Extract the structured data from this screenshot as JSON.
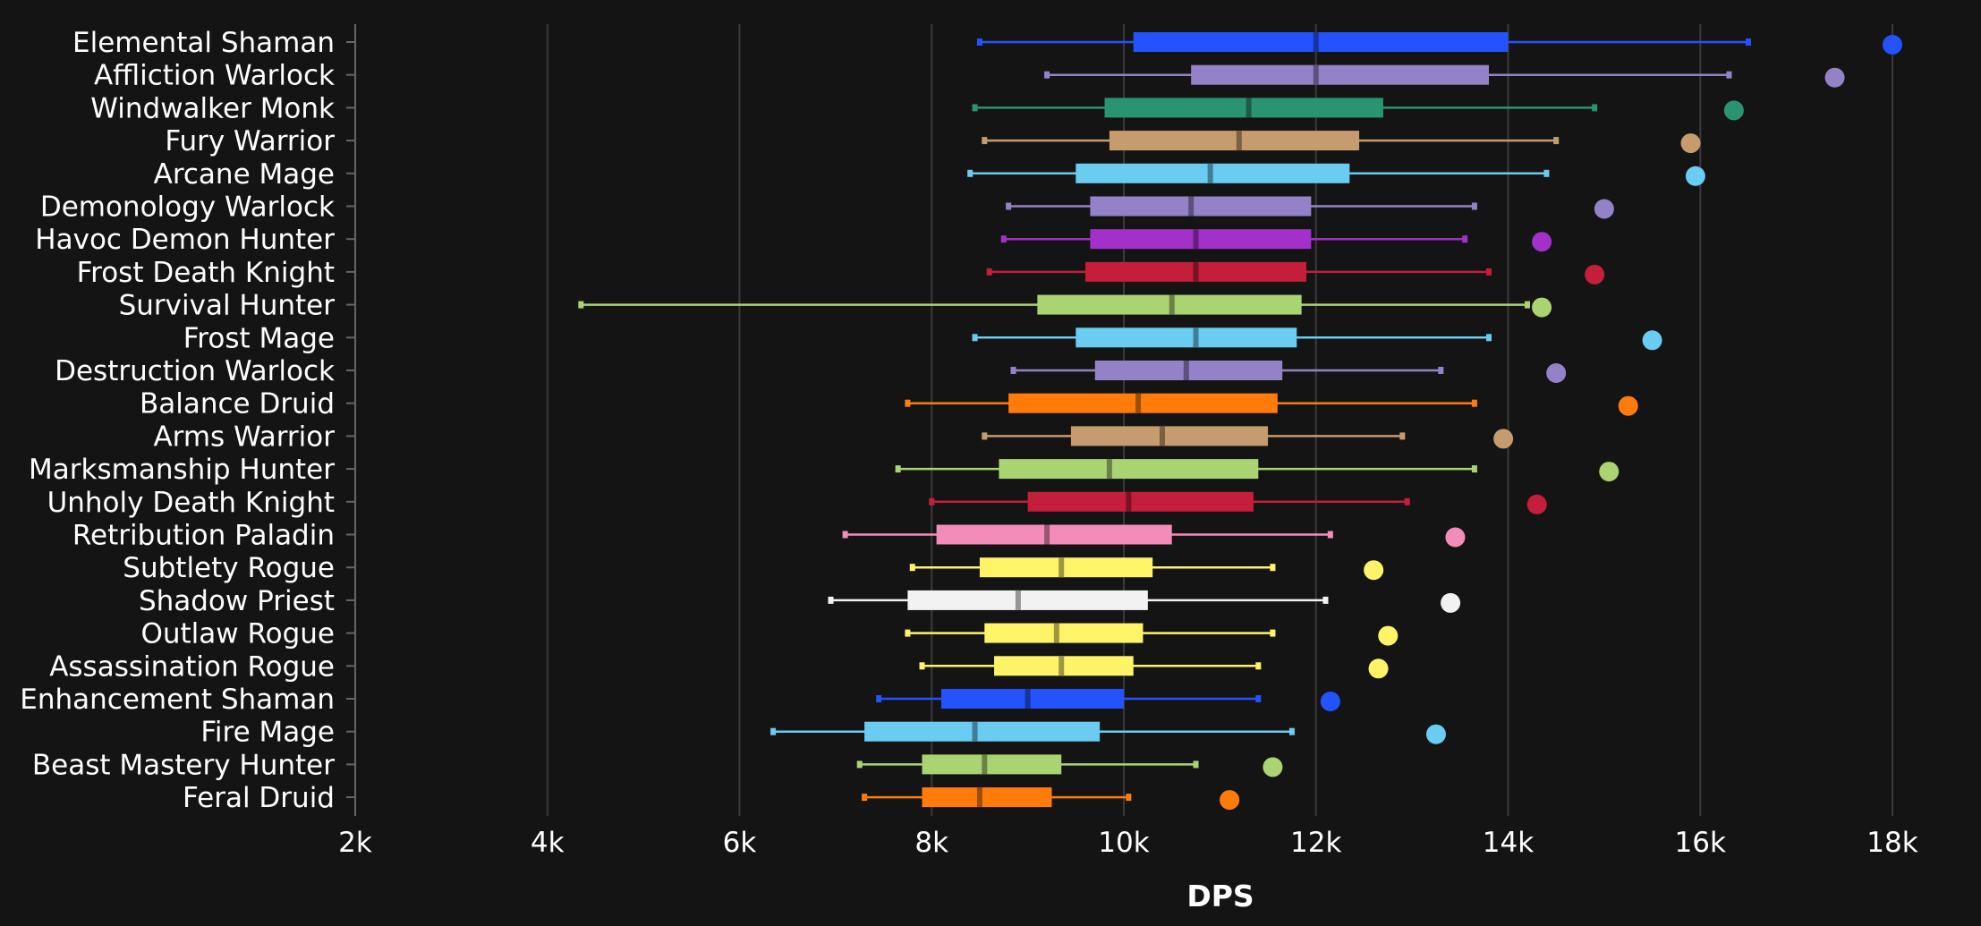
{
  "chart_data": {
    "type": "boxplot",
    "xlabel": "DPS",
    "xlim": [
      2000,
      18000
    ],
    "x_ticks": [
      2000,
      4000,
      6000,
      8000,
      10000,
      12000,
      14000,
      16000,
      18000
    ],
    "x_tick_labels": [
      "2k",
      "4k",
      "6k",
      "8k",
      "10k",
      "12k",
      "14k",
      "16k",
      "18k"
    ],
    "grid": "vertical",
    "legend": "none",
    "categories": [
      {
        "name": "Elemental Shaman",
        "color": "#2452ff",
        "min": 8500,
        "q1": 10100,
        "median": 12000,
        "q3": 14000,
        "max": 16500,
        "point": 18000
      },
      {
        "name": "Affliction Warlock",
        "color": "#9482c9",
        "min": 9200,
        "q1": 10700,
        "median": 12000,
        "q3": 13800,
        "max": 16300,
        "point": 17400
      },
      {
        "name": "Windwalker Monk",
        "color": "#2a9472",
        "min": 8450,
        "q1": 9800,
        "median": 11300,
        "q3": 12700,
        "max": 14900,
        "point": 16350
      },
      {
        "name": "Fury Warrior",
        "color": "#c69b6d",
        "min": 8550,
        "q1": 9850,
        "median": 11200,
        "q3": 12450,
        "max": 14500,
        "point": 15900
      },
      {
        "name": "Arcane Mage",
        "color": "#69ccf0",
        "min": 8400,
        "q1": 9500,
        "median": 10900,
        "q3": 12350,
        "max": 14400,
        "point": 15950
      },
      {
        "name": "Demonology Warlock",
        "color": "#9482c9",
        "min": 8800,
        "q1": 9650,
        "median": 10700,
        "q3": 11950,
        "max": 13650,
        "point": 15000
      },
      {
        "name": "Havoc Demon Hunter",
        "color": "#a330c9",
        "min": 8750,
        "q1": 9650,
        "median": 10750,
        "q3": 11950,
        "max": 13550,
        "point": 14350
      },
      {
        "name": "Frost Death Knight",
        "color": "#c41e3a",
        "min": 8600,
        "q1": 9600,
        "median": 10750,
        "q3": 11900,
        "max": 13800,
        "point": 14900
      },
      {
        "name": "Survival Hunter",
        "color": "#aad372",
        "min": 4350,
        "q1": 9100,
        "median": 10500,
        "q3": 11850,
        "max": 14200,
        "point": 14350
      },
      {
        "name": "Frost Mage",
        "color": "#69ccf0",
        "min": 8450,
        "q1": 9500,
        "median": 10750,
        "q3": 11800,
        "max": 13800,
        "point": 15500
      },
      {
        "name": "Destruction Warlock",
        "color": "#9482c9",
        "min": 8850,
        "q1": 9700,
        "median": 10650,
        "q3": 11650,
        "max": 13300,
        "point": 14500
      },
      {
        "name": "Balance Druid",
        "color": "#ff7c0a",
        "min": 7750,
        "q1": 8800,
        "median": 10150,
        "q3": 11600,
        "max": 13650,
        "point": 15250
      },
      {
        "name": "Arms Warrior",
        "color": "#c69b6d",
        "min": 8550,
        "q1": 9450,
        "median": 10400,
        "q3": 11500,
        "max": 12900,
        "point": 13950
      },
      {
        "name": "Marksmanship Hunter",
        "color": "#aad372",
        "min": 7650,
        "q1": 8700,
        "median": 9850,
        "q3": 11400,
        "max": 13650,
        "point": 15050
      },
      {
        "name": "Unholy Death Knight",
        "color": "#c41e3a",
        "min": 8000,
        "q1": 9000,
        "median": 10050,
        "q3": 11350,
        "max": 12950,
        "point": 14300
      },
      {
        "name": "Retribution Paladin",
        "color": "#f48cba",
        "min": 7100,
        "q1": 8050,
        "median": 9200,
        "q3": 10500,
        "max": 12150,
        "point": 13450
      },
      {
        "name": "Subtlety Rogue",
        "color": "#fff468",
        "min": 7800,
        "q1": 8500,
        "median": 9350,
        "q3": 10300,
        "max": 11550,
        "point": 12600
      },
      {
        "name": "Shadow Priest",
        "color": "#f2f2f2",
        "min": 6950,
        "q1": 7750,
        "median": 8900,
        "q3": 10250,
        "max": 12100,
        "point": 13400
      },
      {
        "name": "Outlaw Rogue",
        "color": "#fff468",
        "min": 7750,
        "q1": 8550,
        "median": 9300,
        "q3": 10200,
        "max": 11550,
        "point": 12750
      },
      {
        "name": "Assassination Rogue",
        "color": "#fff468",
        "min": 7900,
        "q1": 8650,
        "median": 9350,
        "q3": 10100,
        "max": 11400,
        "point": 12650
      },
      {
        "name": "Enhancement Shaman",
        "color": "#2452ff",
        "min": 7450,
        "q1": 8100,
        "median": 9000,
        "q3": 10000,
        "max": 11400,
        "point": 12150
      },
      {
        "name": "Fire Mage",
        "color": "#69ccf0",
        "min": 6350,
        "q1": 7300,
        "median": 8450,
        "q3": 9750,
        "max": 11750,
        "point": 13250
      },
      {
        "name": "Beast Mastery Hunter",
        "color": "#aad372",
        "min": 7250,
        "q1": 7900,
        "median": 8550,
        "q3": 9350,
        "max": 10750,
        "point": 11550
      },
      {
        "name": "Feral Druid",
        "color": "#ff7c0a",
        "min": 7300,
        "q1": 7900,
        "median": 8500,
        "q3": 9250,
        "max": 10050,
        "point": 11100
      }
    ]
  },
  "colors": {
    "background": "#141414",
    "grid": "#3a3a3a",
    "axis": "#666666",
    "text": "#ffffff"
  }
}
